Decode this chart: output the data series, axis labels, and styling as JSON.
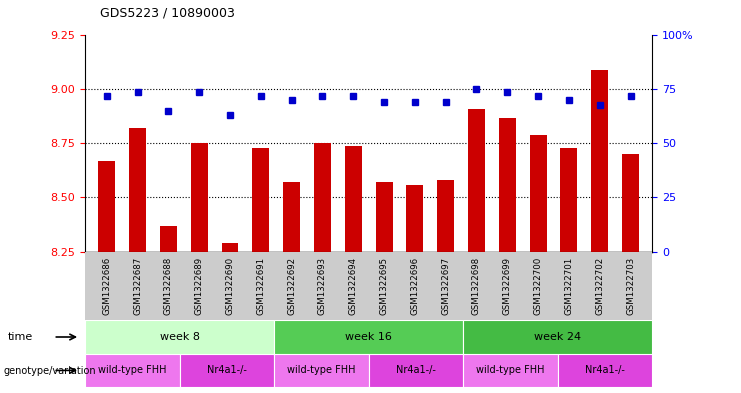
{
  "title": "GDS5223 / 10890003",
  "samples": [
    "GSM1322686",
    "GSM1322687",
    "GSM1322688",
    "GSM1322689",
    "GSM1322690",
    "GSM1322691",
    "GSM1322692",
    "GSM1322693",
    "GSM1322694",
    "GSM1322695",
    "GSM1322696",
    "GSM1322697",
    "GSM1322698",
    "GSM1322699",
    "GSM1322700",
    "GSM1322701",
    "GSM1322702",
    "GSM1322703"
  ],
  "transformed_count": [
    8.67,
    8.82,
    8.37,
    8.75,
    8.29,
    8.73,
    8.57,
    8.75,
    8.74,
    8.57,
    8.56,
    8.58,
    8.91,
    8.87,
    8.79,
    8.73,
    9.09,
    8.7
  ],
  "percentile_rank": [
    72,
    74,
    65,
    74,
    63,
    72,
    70,
    72,
    72,
    69,
    69,
    69,
    75,
    74,
    72,
    70,
    68,
    72
  ],
  "ylim_left": [
    8.25,
    9.25
  ],
  "ylim_right": [
    0,
    100
  ],
  "yticks_left": [
    8.25,
    8.5,
    8.75,
    9.0,
    9.25
  ],
  "yticks_right": [
    0,
    25,
    50,
    75,
    100
  ],
  "bar_color": "#cc0000",
  "dot_color": "#0000cc",
  "time_groups": [
    {
      "text": "week 8",
      "start": 0,
      "end": 6,
      "color": "#ccffcc"
    },
    {
      "text": "week 16",
      "start": 6,
      "end": 12,
      "color": "#55cc55"
    },
    {
      "text": "week 24",
      "start": 12,
      "end": 18,
      "color": "#44bb44"
    }
  ],
  "genotype_groups": [
    {
      "text": "wild-type FHH",
      "start": 0,
      "end": 3,
      "color": "#ee77ee"
    },
    {
      "text": "Nr4a1-/-",
      "start": 3,
      "end": 6,
      "color": "#dd44dd"
    },
    {
      "text": "wild-type FHH",
      "start": 6,
      "end": 9,
      "color": "#ee77ee"
    },
    {
      "text": "Nr4a1-/-",
      "start": 9,
      "end": 12,
      "color": "#dd44dd"
    },
    {
      "text": "wild-type FHH",
      "start": 12,
      "end": 15,
      "color": "#ee77ee"
    },
    {
      "text": "Nr4a1-/-",
      "start": 15,
      "end": 18,
      "color": "#dd44dd"
    }
  ],
  "dotted_lines": [
    9.0,
    8.75,
    8.5
  ],
  "background_color": "#ffffff",
  "tick_label_bg": "#cccccc",
  "n_samples": 18
}
